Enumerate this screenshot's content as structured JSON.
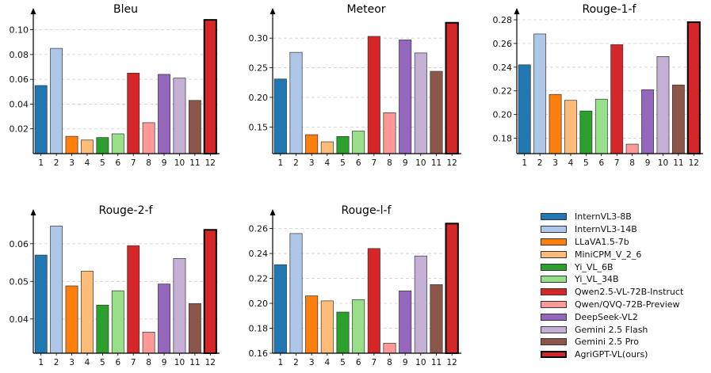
{
  "chart_data": [
    {
      "type": "bar",
      "title": "Bleu",
      "categories": [
        "1",
        "2",
        "3",
        "4",
        "5",
        "6",
        "7",
        "8",
        "9",
        "10",
        "11",
        "12"
      ],
      "values": [
        0.055,
        0.085,
        0.014,
        0.011,
        0.013,
        0.016,
        0.065,
        0.025,
        0.064,
        0.061,
        0.043,
        0.108
      ],
      "ylim": [
        0,
        0.11
      ],
      "yticks": [
        0.02,
        0.04,
        0.06,
        0.08,
        0.1
      ],
      "ytick_labels": [
        "0.02",
        "0.04",
        "0.06",
        "0.08",
        "0.10"
      ],
      "grid": true
    },
    {
      "type": "bar",
      "title": "Meteor",
      "categories": [
        "1",
        "2",
        "3",
        "4",
        "5",
        "6",
        "7",
        "8",
        "9",
        "10",
        "11",
        "12"
      ],
      "values": [
        0.231,
        0.276,
        0.137,
        0.125,
        0.134,
        0.143,
        0.303,
        0.174,
        0.297,
        0.275,
        0.244,
        0.326
      ],
      "ylim": [
        0.105,
        0.335
      ],
      "yticks": [
        0.15,
        0.2,
        0.25,
        0.3
      ],
      "ytick_labels": [
        "0.15",
        "0.20",
        "0.25",
        "0.30"
      ],
      "grid": true
    },
    {
      "type": "bar",
      "title": "Rouge-1-f",
      "categories": [
        "1",
        "2",
        "3",
        "4",
        "5",
        "6",
        "7",
        "8",
        "9",
        "10",
        "11",
        "12"
      ],
      "values": [
        0.242,
        0.268,
        0.217,
        0.212,
        0.203,
        0.213,
        0.259,
        0.175,
        0.221,
        0.249,
        0.225,
        0.278
      ],
      "ylim": [
        0.167,
        0.282
      ],
      "yticks": [
        0.18,
        0.2,
        0.22,
        0.24,
        0.26,
        0.28
      ],
      "ytick_labels": [
        "0.18",
        "0.20",
        "0.22",
        "0.24",
        "0.26",
        "0.28"
      ],
      "grid": true
    },
    {
      "type": "bar",
      "title": "Rouge-2-f",
      "categories": [
        "1",
        "2",
        "3",
        "4",
        "5",
        "6",
        "7",
        "8",
        "9",
        "10",
        "11",
        "12"
      ],
      "values": [
        0.057,
        0.0647,
        0.0488,
        0.0527,
        0.0437,
        0.0475,
        0.0595,
        0.0365,
        0.0493,
        0.0561,
        0.0441,
        0.0637
      ],
      "ylim": [
        0.0309,
        0.0667
      ],
      "yticks": [
        0.04,
        0.05,
        0.06
      ],
      "ytick_labels": [
        "0.04",
        "0.05",
        "0.06"
      ],
      "grid": true
    },
    {
      "type": "bar",
      "title": "Rouge-l-f",
      "categories": [
        "1",
        "2",
        "3",
        "4",
        "5",
        "6",
        "7",
        "8",
        "9",
        "10",
        "11",
        "12"
      ],
      "values": [
        0.231,
        0.256,
        0.206,
        0.202,
        0.193,
        0.203,
        0.244,
        0.168,
        0.21,
        0.238,
        0.215,
        0.264
      ],
      "ylim": [
        0.16,
        0.268
      ],
      "yticks": [
        0.16,
        0.18,
        0.2,
        0.22,
        0.24,
        0.26
      ],
      "ytick_labels": [
        "0.16",
        "0.18",
        "0.20",
        "0.22",
        "0.24",
        "0.26"
      ],
      "grid": true
    }
  ],
  "colors": [
    "#1f77b4",
    "#aec7e8",
    "#ff7f0e",
    "#ffbb78",
    "#2ca02c",
    "#98df8a",
    "#d62728",
    "#ff9896",
    "#9467bd",
    "#c5b0d5",
    "#8c564b",
    "#d62728"
  ],
  "legend": {
    "placement": "bottom-right",
    "items": [
      {
        "label": "InternVL3-8B",
        "color": "#1f77b4"
      },
      {
        "label": "InternVL3-14B",
        "color": "#aec7e8"
      },
      {
        "label": "LLaVA1.5-7b",
        "color": "#ff7f0e"
      },
      {
        "label": "MiniCPM_V_2_6",
        "color": "#ffbb78"
      },
      {
        "label": "Yi_VL_6B",
        "color": "#2ca02c"
      },
      {
        "label": "Yi_VL_34B",
        "color": "#98df8a"
      },
      {
        "label": "Qwen2.5-VL-72B-Instruct",
        "color": "#d62728"
      },
      {
        "label": "Qwen/QVQ-72B-Preview",
        "color": "#ff9896"
      },
      {
        "label": "DeepSeek-VL2",
        "color": "#9467bd"
      },
      {
        "label": "Gemini 2.5 Flash",
        "color": "#c5b0d5"
      },
      {
        "label": "Gemini 2.5 Pro",
        "color": "#8c564b"
      },
      {
        "label": "AgriGPT-VL(ours)",
        "color": "#d62728"
      }
    ]
  }
}
